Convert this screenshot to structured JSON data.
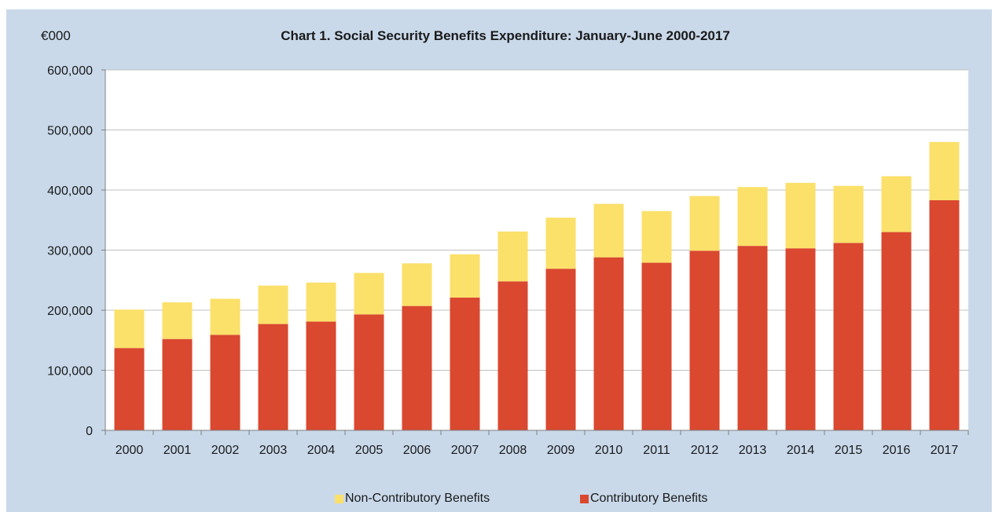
{
  "unit_label": "€000",
  "chart_data": {
    "type": "bar",
    "stacked": true,
    "title": "Chart 1. Social Security Benefits Expenditure: January-June 2000-2017",
    "xlabel": "",
    "ylabel": "€000",
    "ylim": [
      0,
      600000
    ],
    "yticks": [
      "0",
      "100,000",
      "200,000",
      "300,000",
      "400,000",
      "500,000",
      "600,000"
    ],
    "ytick_values": [
      0,
      100000,
      200000,
      300000,
      400000,
      500000,
      600000
    ],
    "grid": true,
    "legend_position": "bottom",
    "categories": [
      "2000",
      "2001",
      "2002",
      "2003",
      "2004",
      "2005",
      "2006",
      "2007",
      "2008",
      "2009",
      "2010",
      "2011",
      "2012",
      "2013",
      "2014",
      "2015",
      "2016",
      "2017"
    ],
    "series": [
      {
        "name": "Contributory Benefits",
        "color": "#d9482f",
        "values": [
          137000,
          152000,
          159000,
          177000,
          181000,
          193000,
          207000,
          221000,
          248000,
          269000,
          288000,
          279000,
          299000,
          307000,
          303000,
          312000,
          330000,
          383000
        ]
      },
      {
        "name": "Non-Contributory Benefits",
        "color": "#fbe06a",
        "values": [
          64000,
          61000,
          60000,
          64000,
          65000,
          69000,
          71000,
          72000,
          83000,
          85000,
          89000,
          86000,
          91000,
          98000,
          109000,
          95000,
          93000,
          97000
        ]
      }
    ]
  },
  "legend": {
    "non_contributory": "Non-Contributory Benefits",
    "contributory": "Contributory Benefits"
  },
  "colors": {
    "background": "#c9d9ea",
    "plot_area": "#ffffff",
    "gridline": "#c0c0c0"
  }
}
